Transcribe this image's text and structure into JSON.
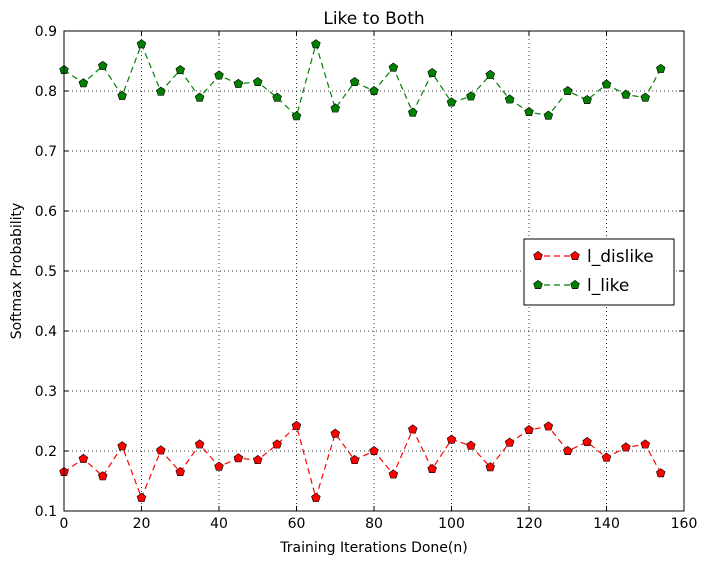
{
  "chart_data": {
    "type": "line",
    "title": "Like to Both",
    "xlabel": "Training Iterations Done(n)",
    "ylabel": "Softmax Probability",
    "xlim": [
      0,
      160
    ],
    "ylim": [
      0.1,
      0.9
    ],
    "xticks": [
      0,
      20,
      40,
      60,
      80,
      100,
      120,
      140,
      160
    ],
    "yticks": [
      0.1,
      0.2,
      0.3,
      0.4,
      0.5,
      0.6,
      0.7,
      0.8,
      0.9
    ],
    "grid": true,
    "legend_position": "center-right",
    "x": [
      0,
      5,
      10,
      15,
      20,
      25,
      30,
      35,
      40,
      45,
      50,
      55,
      60,
      65,
      70,
      75,
      80,
      85,
      90,
      95,
      100,
      105,
      110,
      115,
      120,
      125,
      130,
      135,
      140,
      145,
      150,
      154
    ],
    "series": [
      {
        "name": "l_dislike",
        "color": "#ff0000",
        "marker": "pentagon",
        "linestyle": "dashed",
        "values": [
          0.165,
          0.187,
          0.158,
          0.208,
          0.122,
          0.201,
          0.165,
          0.211,
          0.174,
          0.188,
          0.185,
          0.211,
          0.242,
          0.122,
          0.229,
          0.185,
          0.2,
          0.161,
          0.236,
          0.17,
          0.219,
          0.209,
          0.173,
          0.214,
          0.235,
          0.241,
          0.2,
          0.215,
          0.189,
          0.206,
          0.211,
          0.163
        ]
      },
      {
        "name": "l_like",
        "color": "#008000",
        "marker": "pentagon",
        "linestyle": "dashed",
        "values": [
          0.835,
          0.813,
          0.842,
          0.792,
          0.878,
          0.799,
          0.835,
          0.789,
          0.826,
          0.812,
          0.815,
          0.789,
          0.758,
          0.878,
          0.771,
          0.815,
          0.8,
          0.839,
          0.764,
          0.83,
          0.781,
          0.791,
          0.827,
          0.786,
          0.765,
          0.759,
          0.8,
          0.785,
          0.811,
          0.794,
          0.789,
          0.837
        ]
      }
    ]
  }
}
